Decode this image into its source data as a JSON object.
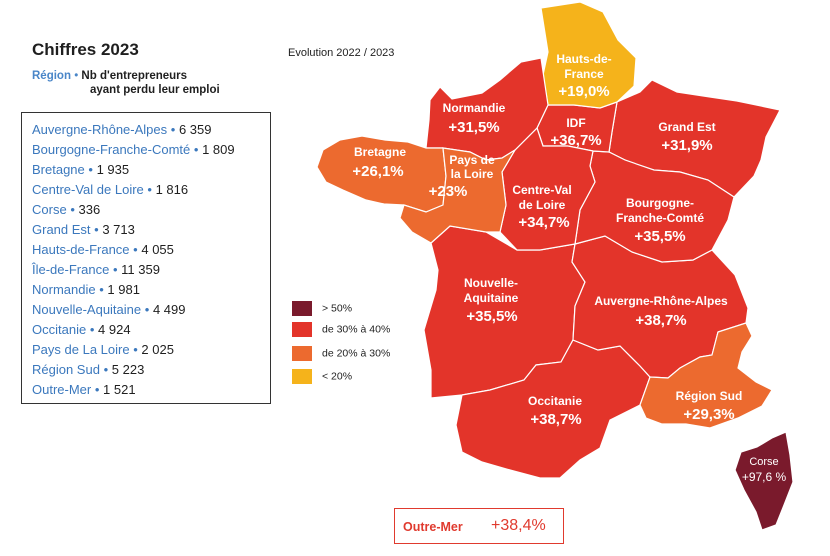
{
  "header": {
    "title": "Chiffres 2023",
    "key_label": "Région",
    "key_bullet": "•",
    "value_label_line1": "Nb d'entrepreneurs",
    "value_label_line2": "ayant perdu leur emploi"
  },
  "evolution_label": "Evolution 2022 / 2023",
  "regions_list": [
    {
      "name": "Auvergne-Rhône-Alpes",
      "value": "6 359"
    },
    {
      "name": "Bourgogne-Franche-Comté",
      "value": "1 809"
    },
    {
      "name": "Bretagne",
      "value": "1 935"
    },
    {
      "name": "Centre-Val de Loire",
      "value": "1 816"
    },
    {
      "name": "Corse",
      "value": "336"
    },
    {
      "name": "Grand Est",
      "value": "3 713"
    },
    {
      "name": "Hauts-de-France",
      "value": "4 055"
    },
    {
      "name": "Île-de-France",
      "value": "11 359"
    },
    {
      "name": "Normandie",
      "value": "1 981"
    },
    {
      "name": "Nouvelle-Aquitaine",
      "value": "4 499"
    },
    {
      "name": "Occitanie",
      "value": "4 924"
    },
    {
      "name": "Pays de La Loire",
      "value": "2 025"
    },
    {
      "name": "Région Sud",
      "value": "5 223"
    },
    {
      "name": "Outre-Mer",
      "value": "1 521"
    }
  ],
  "map_labels": {
    "hdf": {
      "name1": "Hauts-de-",
      "name2": "France",
      "value": "+19,0%"
    },
    "nor": {
      "name1": "Normandie",
      "value": "+31,5%"
    },
    "idf": {
      "name1": "IDF",
      "value": "+36,7%"
    },
    "ge": {
      "name1": "Grand Est",
      "value": "+31,9%"
    },
    "bre": {
      "name1": "Bretagne",
      "value": "+26,1%"
    },
    "pdl": {
      "name1": "Pays de",
      "name2": "la Loire",
      "value": "+23%"
    },
    "cvl": {
      "name1": "Centre-Val",
      "name2": "de Loire",
      "value": "+34,7%"
    },
    "bfc": {
      "name1": "Bourgogne-",
      "name2": "Franche-Comté",
      "value": "+35,5%"
    },
    "na": {
      "name1": "Nouvelle-",
      "name2": "Aquitaine",
      "value": "+35,5%"
    },
    "ara": {
      "name1": "Auvergne-Rhône-Alpes",
      "value": "+38,7%"
    },
    "occ": {
      "name1": "Occitanie",
      "value": "+38,7%"
    },
    "sud": {
      "name1": "Région Sud",
      "value": "+29,3%"
    },
    "cor": {
      "name1": "Corse",
      "value": "+97,6 %"
    }
  },
  "legend": [
    {
      "label": "> 50%",
      "color": "#7a1a2c"
    },
    {
      "label": "de 30% à 40%",
      "color": "#e3342a"
    },
    {
      "label": "de 20% à 30%",
      "color": "#ec6a2f"
    },
    {
      "label": "< 20%",
      "color": "#f5b31b"
    }
  ],
  "outre_mer": {
    "label": "Outre-Mer",
    "value": "+38,4%"
  },
  "colors": {
    "over50": "#7a1a2c",
    "30to40": "#e3342a",
    "20to30": "#ec6a2f",
    "under20": "#f5b31b",
    "list_name": "#3b78bd"
  }
}
